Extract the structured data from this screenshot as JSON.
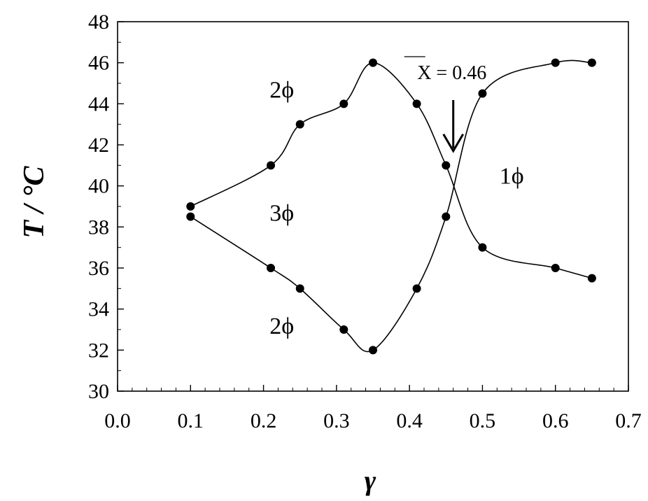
{
  "chart_data": {
    "type": "line",
    "xlabel": "γ",
    "ylabel": "T / °C",
    "xlim": [
      0.0,
      0.7
    ],
    "ylim": [
      30,
      48
    ],
    "x_ticks": [
      "0.0",
      "0.1",
      "0.2",
      "0.3",
      "0.4",
      "0.5",
      "0.6",
      "0.7"
    ],
    "y_ticks": [
      "30",
      "32",
      "34",
      "36",
      "38",
      "40",
      "42",
      "44",
      "46",
      "48"
    ],
    "grid": false,
    "legend": "none",
    "series": [
      {
        "x": [
          0.1,
          0.21,
          0.25,
          0.31,
          0.35,
          0.41,
          0.45,
          0.5,
          0.6,
          0.65
        ],
        "y": [
          39.0,
          41.0,
          43.0,
          44.0,
          46.0,
          44.0,
          41.0,
          37.0,
          36.0,
          35.5
        ]
      },
      {
        "x": [
          0.1,
          0.21,
          0.25,
          0.31,
          0.35,
          0.41,
          0.45,
          0.5,
          0.6,
          0.65
        ],
        "y": [
          38.5,
          36.0,
          35.0,
          33.0,
          32.0,
          35.0,
          38.5,
          44.5,
          46.0,
          46.0
        ]
      }
    ],
    "annotations": [
      {
        "text": "2ϕ",
        "x": 0.225,
        "y": 44.3
      },
      {
        "text": "3ϕ",
        "x": 0.225,
        "y": 38.3
      },
      {
        "text": "2ϕ",
        "x": 0.225,
        "y": 32.8
      },
      {
        "text": "1ϕ",
        "x": 0.54,
        "y": 40.1
      }
    ],
    "marker_annotation": {
      "text": "X = 0.46",
      "x_value": 0.46,
      "arrow_to_y": 41.7
    }
  }
}
